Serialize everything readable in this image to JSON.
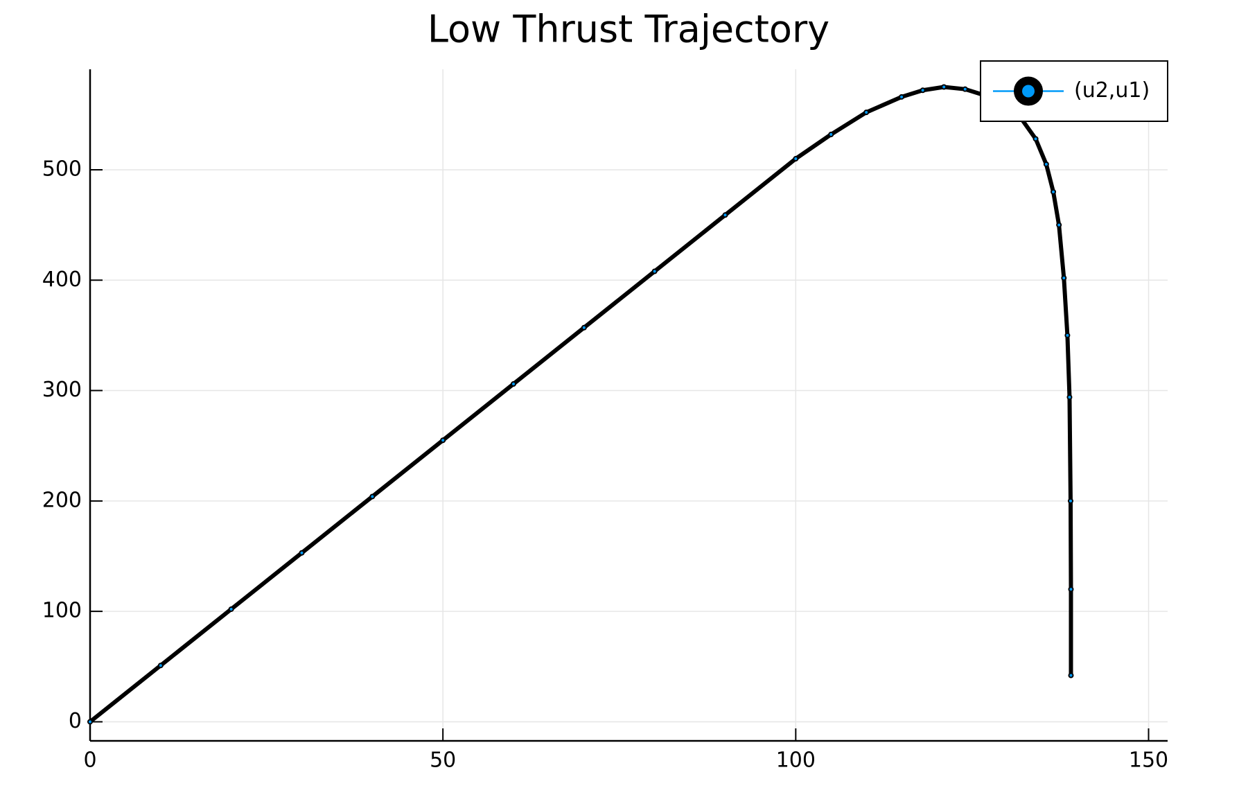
{
  "chart_data": {
    "type": "line",
    "title": "Low Thrust Trajectory",
    "x": [
      0,
      10,
      20,
      30,
      40,
      50,
      60,
      70,
      80,
      90,
      100,
      105,
      110,
      115,
      118,
      121,
      124,
      127,
      130,
      132,
      134,
      135.5,
      136.5,
      137.3,
      138,
      138.5,
      138.8,
      138.95,
      139,
      139
    ],
    "series": [
      {
        "name": "(u2,u1)",
        "color": "#009af9",
        "marker_color": "#000000",
        "values": [
          0,
          51,
          102,
          153,
          204,
          255,
          306,
          357,
          408,
          459,
          510,
          532,
          552,
          566,
          572,
          575,
          573,
          567,
          557,
          546,
          528,
          505,
          480,
          450,
          402,
          350,
          294,
          200,
          120,
          42
        ]
      }
    ],
    "xlim": [
      0,
      152.7
    ],
    "xticks": [
      0,
      50,
      100,
      150
    ],
    "ylim": [
      -17.3,
      591
    ],
    "yticks": [
      0,
      100,
      200,
      300,
      400,
      500
    ],
    "grid": true,
    "legend": "topright"
  }
}
